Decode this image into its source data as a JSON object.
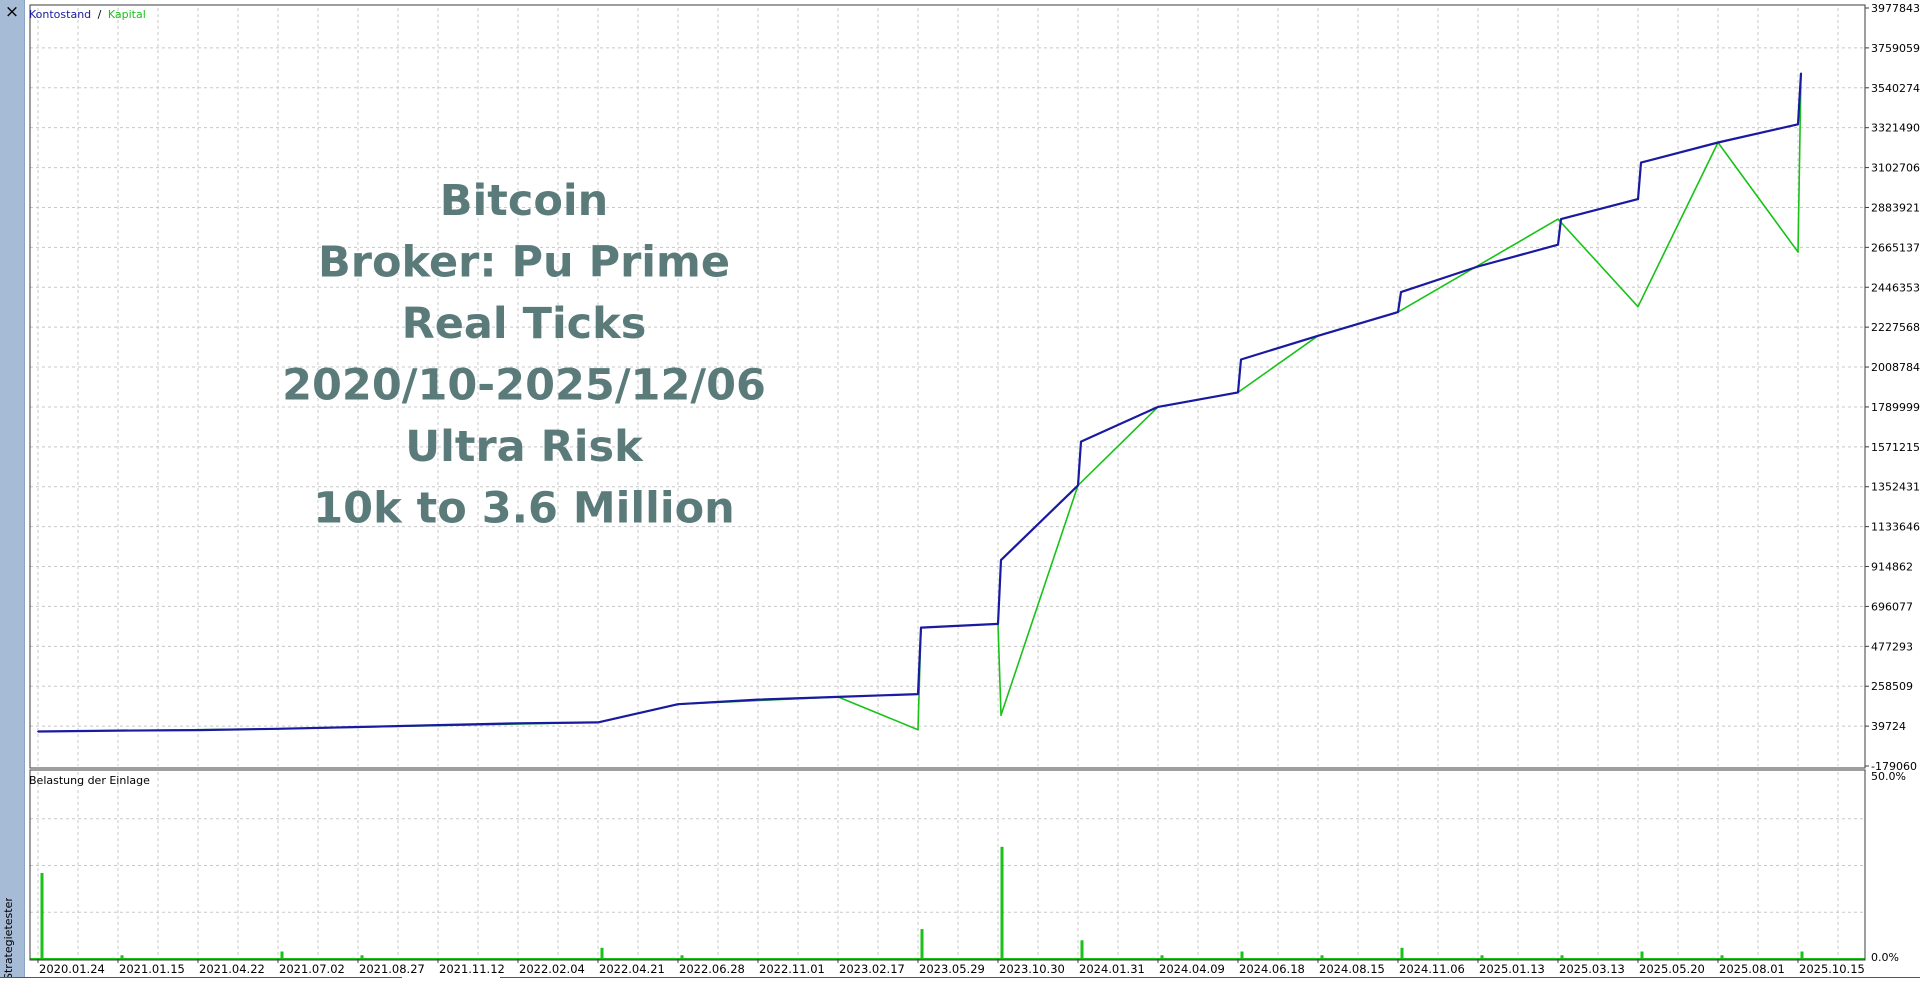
{
  "window": {
    "close_symbol": "×",
    "side_panel_label": "Strategietester"
  },
  "legend": {
    "balance": "Kontostand",
    "separator": "/",
    "equity": "Kapital"
  },
  "overlay_text": [
    "Bitcoin",
    "Broker: Pu Prime",
    "Real Ticks",
    "2020/10-2025/12/06",
    "Ultra Risk",
    "10k to 3.6 Million"
  ],
  "colors": {
    "balance": "#1a1aa0",
    "equity": "#19c219",
    "overlay_text": "#5b7b7b",
    "grid": "#c8c8c8",
    "frame": "#3c3c3c"
  },
  "chart_data": [
    {
      "type": "line",
      "title": "",
      "y_ticks": [
        "3977843",
        "3759059",
        "3540274",
        "3321490",
        "3102706",
        "2883921",
        "2665137",
        "2446353",
        "2227568",
        "2008784",
        "1789999",
        "1571215",
        "1352431",
        "1133646",
        "914862",
        "696077",
        "477293",
        "258509",
        "39724",
        "-179060"
      ],
      "ylim": [
        -179060,
        3977843
      ],
      "x_tick_labels": [
        "2020.01.24",
        "2021.01.15",
        "2021.04.22",
        "2021.07.02",
        "2021.08.27",
        "2021.11.12",
        "2022.02.04",
        "2022.04.21",
        "2022.06.28",
        "2022.11.01",
        "2023.02.17",
        "2023.05.29",
        "2023.10.30",
        "2024.01.31",
        "2024.04.09",
        "2024.06.18",
        "2024.08.15",
        "2024.11.06",
        "2025.01.13",
        "2025.03.13",
        "2025.05.20",
        "2025.08.01",
        "2025.10.15"
      ],
      "grid": true,
      "legend_position": "top-left",
      "series": [
        {
          "name": "Kontostand",
          "x": [
            "2020.01.24",
            "2021.01.15",
            "2021.04.22",
            "2021.07.02",
            "2021.08.27",
            "2021.11.12",
            "2022.02.04",
            "2022.04.21",
            "2022.06.28",
            "2022.11.01",
            "2023.02.17",
            "2023.05.29",
            "2023.05.29",
            "2023.10.30",
            "2023.10.30",
            "2024.01.31",
            "2024.01.31",
            "2024.04.09",
            "2024.06.18",
            "2024.06.18",
            "2024.08.15",
            "2024.11.06",
            "2024.11.06",
            "2025.01.13",
            "2025.03.13",
            "2025.03.13",
            "2025.05.20",
            "2025.05.20",
            "2025.08.01",
            "2025.10.15",
            "2025.10.15"
          ],
          "values": [
            10000,
            15000,
            18000,
            25000,
            35000,
            45000,
            55000,
            60000,
            160000,
            185000,
            200000,
            215000,
            580000,
            600000,
            950000,
            1360000,
            1600000,
            1790000,
            1870000,
            2050000,
            2180000,
            2310000,
            2420000,
            2560000,
            2680000,
            2820000,
            2930000,
            3130000,
            3240000,
            3340000,
            3620000
          ]
        },
        {
          "name": "Kapital",
          "x": [
            "2020.01.24",
            "2021.07.02",
            "2022.04.21",
            "2022.06.28",
            "2023.02.17",
            "2023.05.29",
            "2023.05.29",
            "2023.10.30",
            "2023.10.30",
            "2024.01.31",
            "2024.04.09",
            "2024.06.18",
            "2024.08.15",
            "2024.11.06",
            "2025.03.13",
            "2025.05.20",
            "2025.08.01",
            "2025.10.15",
            "2025.10.15"
          ],
          "values": [
            10000,
            25000,
            60000,
            160000,
            200000,
            20000,
            580000,
            600000,
            100000,
            1360000,
            1790000,
            1870000,
            2180000,
            2310000,
            2820000,
            2340000,
            3240000,
            2640000,
            3620000
          ]
        }
      ]
    },
    {
      "type": "area",
      "title": "Belastung der Einlage",
      "y_ticks": [
        "50.0%",
        "0.0%"
      ],
      "ylim": [
        0,
        50
      ],
      "series": [
        {
          "name": "Belastung der Einlage",
          "x": [
            "2020.01.24",
            "2021.01.15",
            "2021.07.02",
            "2021.08.27",
            "2022.04.21",
            "2022.06.28",
            "2023.05.29",
            "2023.10.30",
            "2024.01.31",
            "2024.04.09",
            "2024.06.18",
            "2024.08.15",
            "2024.11.06",
            "2025.01.13",
            "2025.03.13",
            "2025.05.20",
            "2025.08.01",
            "2025.10.15"
          ],
          "values": [
            23,
            1,
            2,
            1,
            3,
            1,
            8,
            30,
            5,
            1,
            2,
            1,
            3,
            1,
            1,
            2,
            1,
            2
          ]
        }
      ]
    }
  ]
}
